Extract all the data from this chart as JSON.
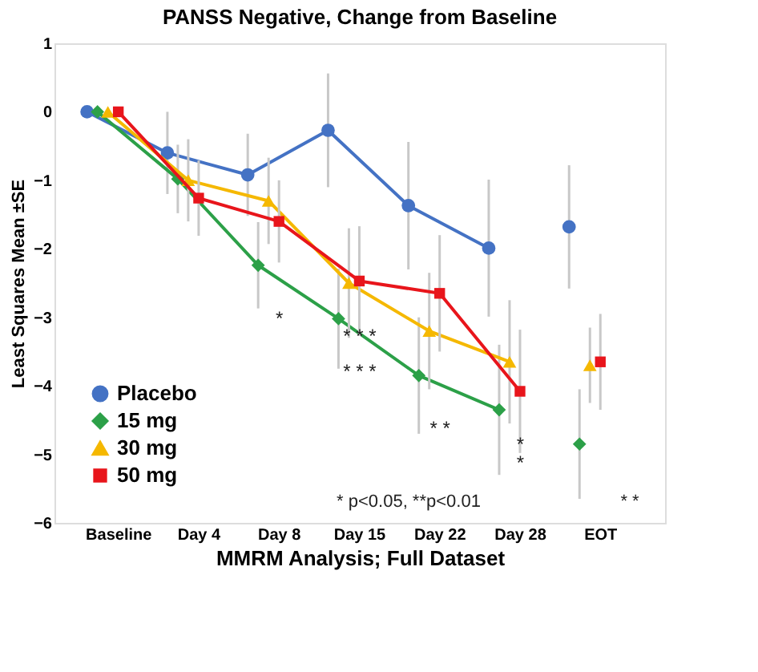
{
  "chart_data": {
    "type": "line",
    "title": "PANSS Negative, Change from Baseline",
    "xlabel": "MMRM Analysis; Full Dataset",
    "ylabel": "Least Squares Mean ±SE",
    "categories": [
      "Baseline",
      "Day 4",
      "Day 8",
      "Day 15",
      "Day 22",
      "Day 28",
      "EOT"
    ],
    "series": [
      {
        "name": "Placebo",
        "color": "#4472c4",
        "marker": "circle",
        "x": [
          "Baseline",
          "Day 4",
          "Day 8",
          "Day 15",
          "Day 22",
          "Day 28"
        ],
        "values": [
          0,
          -0.6,
          -0.92,
          -0.27,
          -1.37,
          -1.99
        ],
        "errors": [
          null,
          0.6,
          0.6,
          0.83,
          0.93,
          1.0
        ]
      },
      {
        "name": "15 mg",
        "color": "#2ca048",
        "marker": "diamond",
        "x": [
          "Baseline",
          "Day 4",
          "Day 8",
          "Day 15",
          "Day 22",
          "Day 28"
        ],
        "values": [
          0,
          -0.98,
          -2.24,
          -3.02,
          -3.85,
          -4.35
        ],
        "errors": [
          null,
          0.5,
          0.63,
          0.73,
          0.85,
          0.95
        ]
      },
      {
        "name": "30 mg",
        "color": "#f5b800",
        "marker": "triangle",
        "x": [
          "Baseline",
          "Day 4",
          "Day 8",
          "Day 15",
          "Day 22",
          "Day 28"
        ],
        "values": [
          0,
          -1.0,
          -1.3,
          -2.5,
          -3.2,
          -3.65
        ],
        "errors": [
          null,
          0.6,
          0.63,
          0.8,
          0.85,
          0.9
        ]
      },
      {
        "name": "50 mg",
        "color": "#e8151b",
        "marker": "square",
        "x": [
          "Baseline",
          "Day 4",
          "Day 8",
          "Day 15",
          "Day 22",
          "Day 28"
        ],
        "values": [
          0,
          -1.26,
          -1.6,
          -2.47,
          -2.65,
          -4.08
        ],
        "errors": [
          null,
          0.55,
          0.6,
          0.8,
          0.85,
          0.9
        ]
      },
      {
        "type": "scatter",
        "color": "#4472c4",
        "marker": "circle",
        "x": [
          "EOT"
        ],
        "values": [
          -1.68
        ],
        "errors": [
          0.9
        ]
      },
      {
        "type": "scatter",
        "color": "#2ca048",
        "marker": "diamond",
        "x": [
          "EOT"
        ],
        "values": [
          -4.85
        ],
        "errors": [
          0.8
        ]
      },
      {
        "type": "scatter",
        "color": "#f5b800",
        "marker": "triangle",
        "x": [
          "EOT"
        ],
        "values": [
          -3.7
        ],
        "errors": [
          0.55
        ]
      },
      {
        "type": "scatter",
        "color": "#e8151b",
        "marker": "square",
        "x": [
          "EOT"
        ],
        "values": [
          -3.65
        ],
        "errors": [
          0.7
        ]
      }
    ],
    "ylim": [
      -6,
      1
    ],
    "yticks": [
      -6,
      -5,
      -4,
      -3,
      -2,
      -1,
      0,
      1
    ],
    "grid": false,
    "legend": "bottom left",
    "annotations": [
      {
        "text": "*",
        "x": "Day 8",
        "y": -2.24
      },
      {
        "text": "* * *",
        "x": "Day 15",
        "y": -2.5
      },
      {
        "text": "* * *",
        "x": "Day 15",
        "y": -3.02
      },
      {
        "text": "* *",
        "x": "Day 22",
        "y": -3.85
      },
      {
        "text": "*",
        "x": "Day 28",
        "y": -4.08
      },
      {
        "text": "*",
        "x": "Day 28",
        "y": -4.35
      },
      "* p<0.05, **p<0.01",
      "* *"
    ]
  }
}
